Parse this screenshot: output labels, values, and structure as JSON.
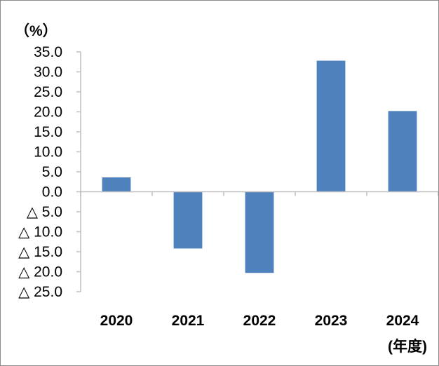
{
  "chart_data": {
    "type": "bar",
    "unit_label": "（%）",
    "x_unit_label": "(年度)",
    "categories": [
      "2020",
      "2021",
      "2022",
      "2023",
      "2024"
    ],
    "values": [
      3.6,
      -14.2,
      -20.3,
      32.8,
      20.2
    ],
    "ylim": [
      -25,
      35
    ],
    "y_ticks": [
      35,
      30,
      25,
      20,
      15,
      10,
      5,
      0,
      -5,
      -10,
      -15,
      -20,
      -25
    ],
    "y_tick_labels": [
      "35.0",
      "30.0",
      "25.0",
      "20.0",
      "15.0",
      "10.0",
      "5.0",
      "0.0",
      "△ 5.0",
      "△ 10.0",
      "△ 15.0",
      "△ 20.0",
      "△ 25.0"
    ],
    "bar_color": "#4f81bd",
    "axis_color": "#bfbfbf",
    "grid": false,
    "legend": "none"
  }
}
